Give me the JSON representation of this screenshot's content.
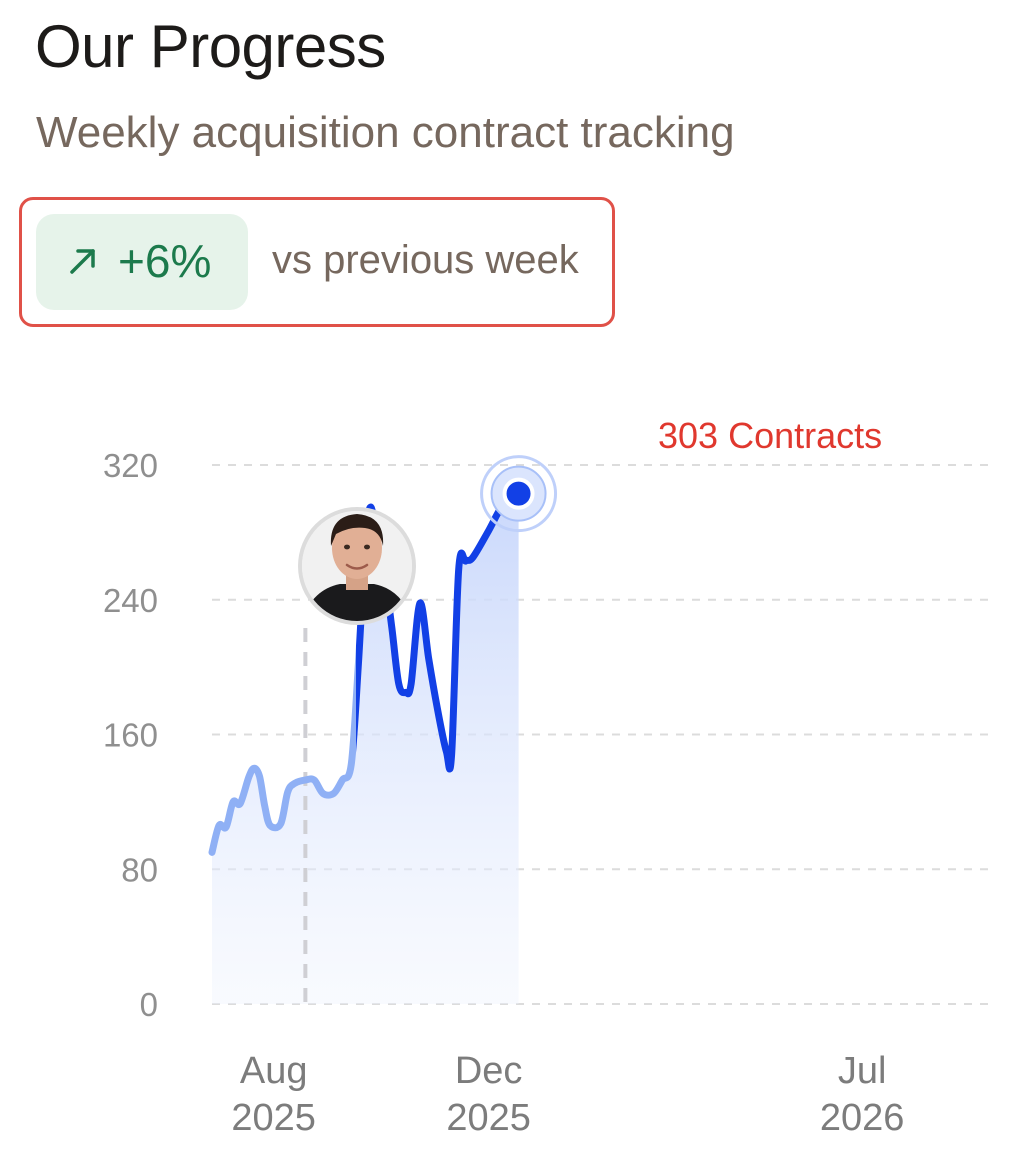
{
  "header": {
    "title": "Our Progress",
    "subtitle": "Weekly acquisition contract tracking"
  },
  "change": {
    "icon": "arrow-up-right-icon",
    "value": "+6%",
    "label": "vs previous week",
    "color": "#1c7a4c",
    "background": "#e6f3ea",
    "highlight_border": "#e05148"
  },
  "chart_data": {
    "type": "line",
    "title": "",
    "xlabel": "",
    "ylabel": "",
    "ylim": [
      0,
      320
    ],
    "yticks": [
      0,
      80,
      160,
      240,
      320
    ],
    "xticks": [
      {
        "date": "2025-08-01",
        "month": "Aug",
        "year": "2025"
      },
      {
        "date": "2025-12-01",
        "month": "Dec",
        "year": "2025"
      },
      {
        "date": "2026-07-01",
        "month": "Jul",
        "year": "2026"
      }
    ],
    "grid": true,
    "x_range": [
      "2025-06-27",
      "2026-09-15"
    ],
    "marker": {
      "date": "2025-08-19",
      "avatar": "person-avatar"
    },
    "annotation": {
      "text": "303 Contracts",
      "date": "2025-12-18",
      "value": 303
    },
    "colors": {
      "line": "#1240e6",
      "line_before_marker": "#8fb0f5",
      "annotation": "#e0382e"
    },
    "series": [
      {
        "points": [
          [
            "2025-06-27",
            90
          ],
          [
            "2025-07-01",
            106
          ],
          [
            "2025-07-05",
            105
          ],
          [
            "2025-07-09",
            120
          ],
          [
            "2025-07-13",
            119
          ],
          [
            "2025-07-18",
            135
          ],
          [
            "2025-07-21",
            140
          ],
          [
            "2025-07-24",
            135
          ],
          [
            "2025-07-27",
            117
          ],
          [
            "2025-07-30",
            106
          ],
          [
            "2025-08-05",
            107
          ],
          [
            "2025-08-09",
            126
          ],
          [
            "2025-08-13",
            131
          ],
          [
            "2025-08-19",
            133
          ],
          [
            "2025-08-24",
            133
          ],
          [
            "2025-08-29",
            125
          ],
          [
            "2025-09-04",
            125
          ],
          [
            "2025-09-09",
            133
          ],
          [
            "2025-09-14",
            142
          ],
          [
            "2025-09-18",
            200
          ],
          [
            "2025-09-22",
            272
          ],
          [
            "2025-09-25",
            295
          ],
          [
            "2025-09-29",
            274
          ],
          [
            "2025-10-03",
            255
          ],
          [
            "2025-10-07",
            224
          ],
          [
            "2025-10-11",
            190
          ],
          [
            "2025-10-15",
            185
          ],
          [
            "2025-10-18",
            190
          ],
          [
            "2025-10-23",
            238
          ],
          [
            "2025-10-28",
            205
          ],
          [
            "2025-11-02",
            175
          ],
          [
            "2025-11-07",
            150
          ],
          [
            "2025-11-10",
            148
          ],
          [
            "2025-11-14",
            258
          ],
          [
            "2025-11-18",
            263
          ],
          [
            "2025-11-22",
            265
          ],
          [
            "2025-12-01",
            281
          ],
          [
            "2025-12-09",
            296
          ],
          [
            "2025-12-18",
            303
          ]
        ]
      }
    ]
  }
}
